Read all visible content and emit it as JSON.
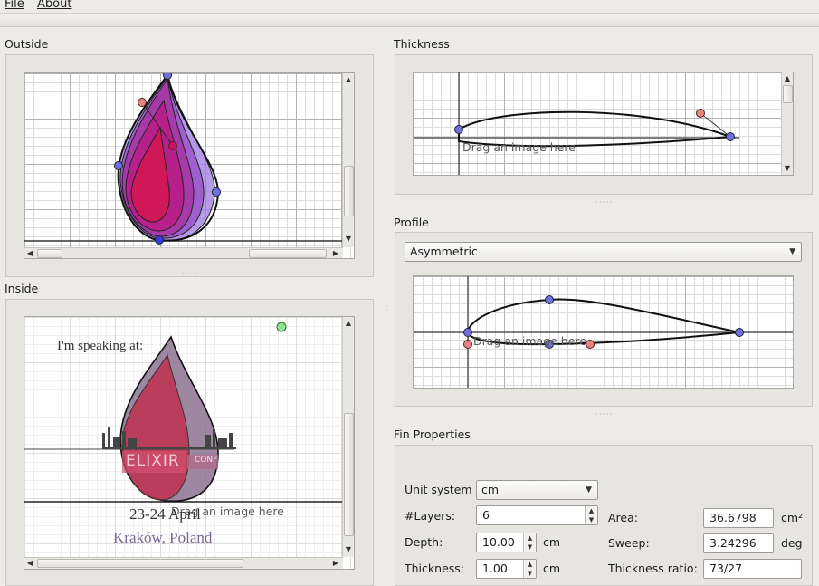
{
  "menu": {
    "file": "File",
    "about": "About"
  },
  "panels": {
    "outside": "Outside",
    "inside": "Inside",
    "thickness": "Thickness",
    "profile": "Profile",
    "fin_properties": "Fin Properties"
  },
  "hint": "Drag an image here",
  "profile_select": {
    "selected": "Asymmetric"
  },
  "inside_image": {
    "speaking": "I'm speaking at:",
    "logo_text": "ELIXIR",
    "logo_suffix": "CONF",
    "dates": "23-24 April",
    "location": "Kraków, Poland"
  },
  "fin": {
    "unit_label": "Unit system",
    "unit_value": "cm",
    "layers_label": "#Layers:",
    "layers_value": "6",
    "depth_label": "Depth:",
    "depth_value": "10.00",
    "depth_unit": "cm",
    "thickness_label": "Thickness:",
    "thickness_value": "1.00",
    "thickness_unit": "cm",
    "area_label": "Area:",
    "area_value": "36.6798",
    "area_unit": "cm²",
    "sweep_label": "Sweep:",
    "sweep_value": "3.24296",
    "sweep_unit": "deg",
    "ratio_label": "Thickness ratio:",
    "ratio_value": "73/27"
  },
  "colors": {
    "handle_blue": "#6f6fe0",
    "handle_red": "#e8827f",
    "handle_green": "#8fe58f",
    "fin_magenta": "#c8106a"
  }
}
